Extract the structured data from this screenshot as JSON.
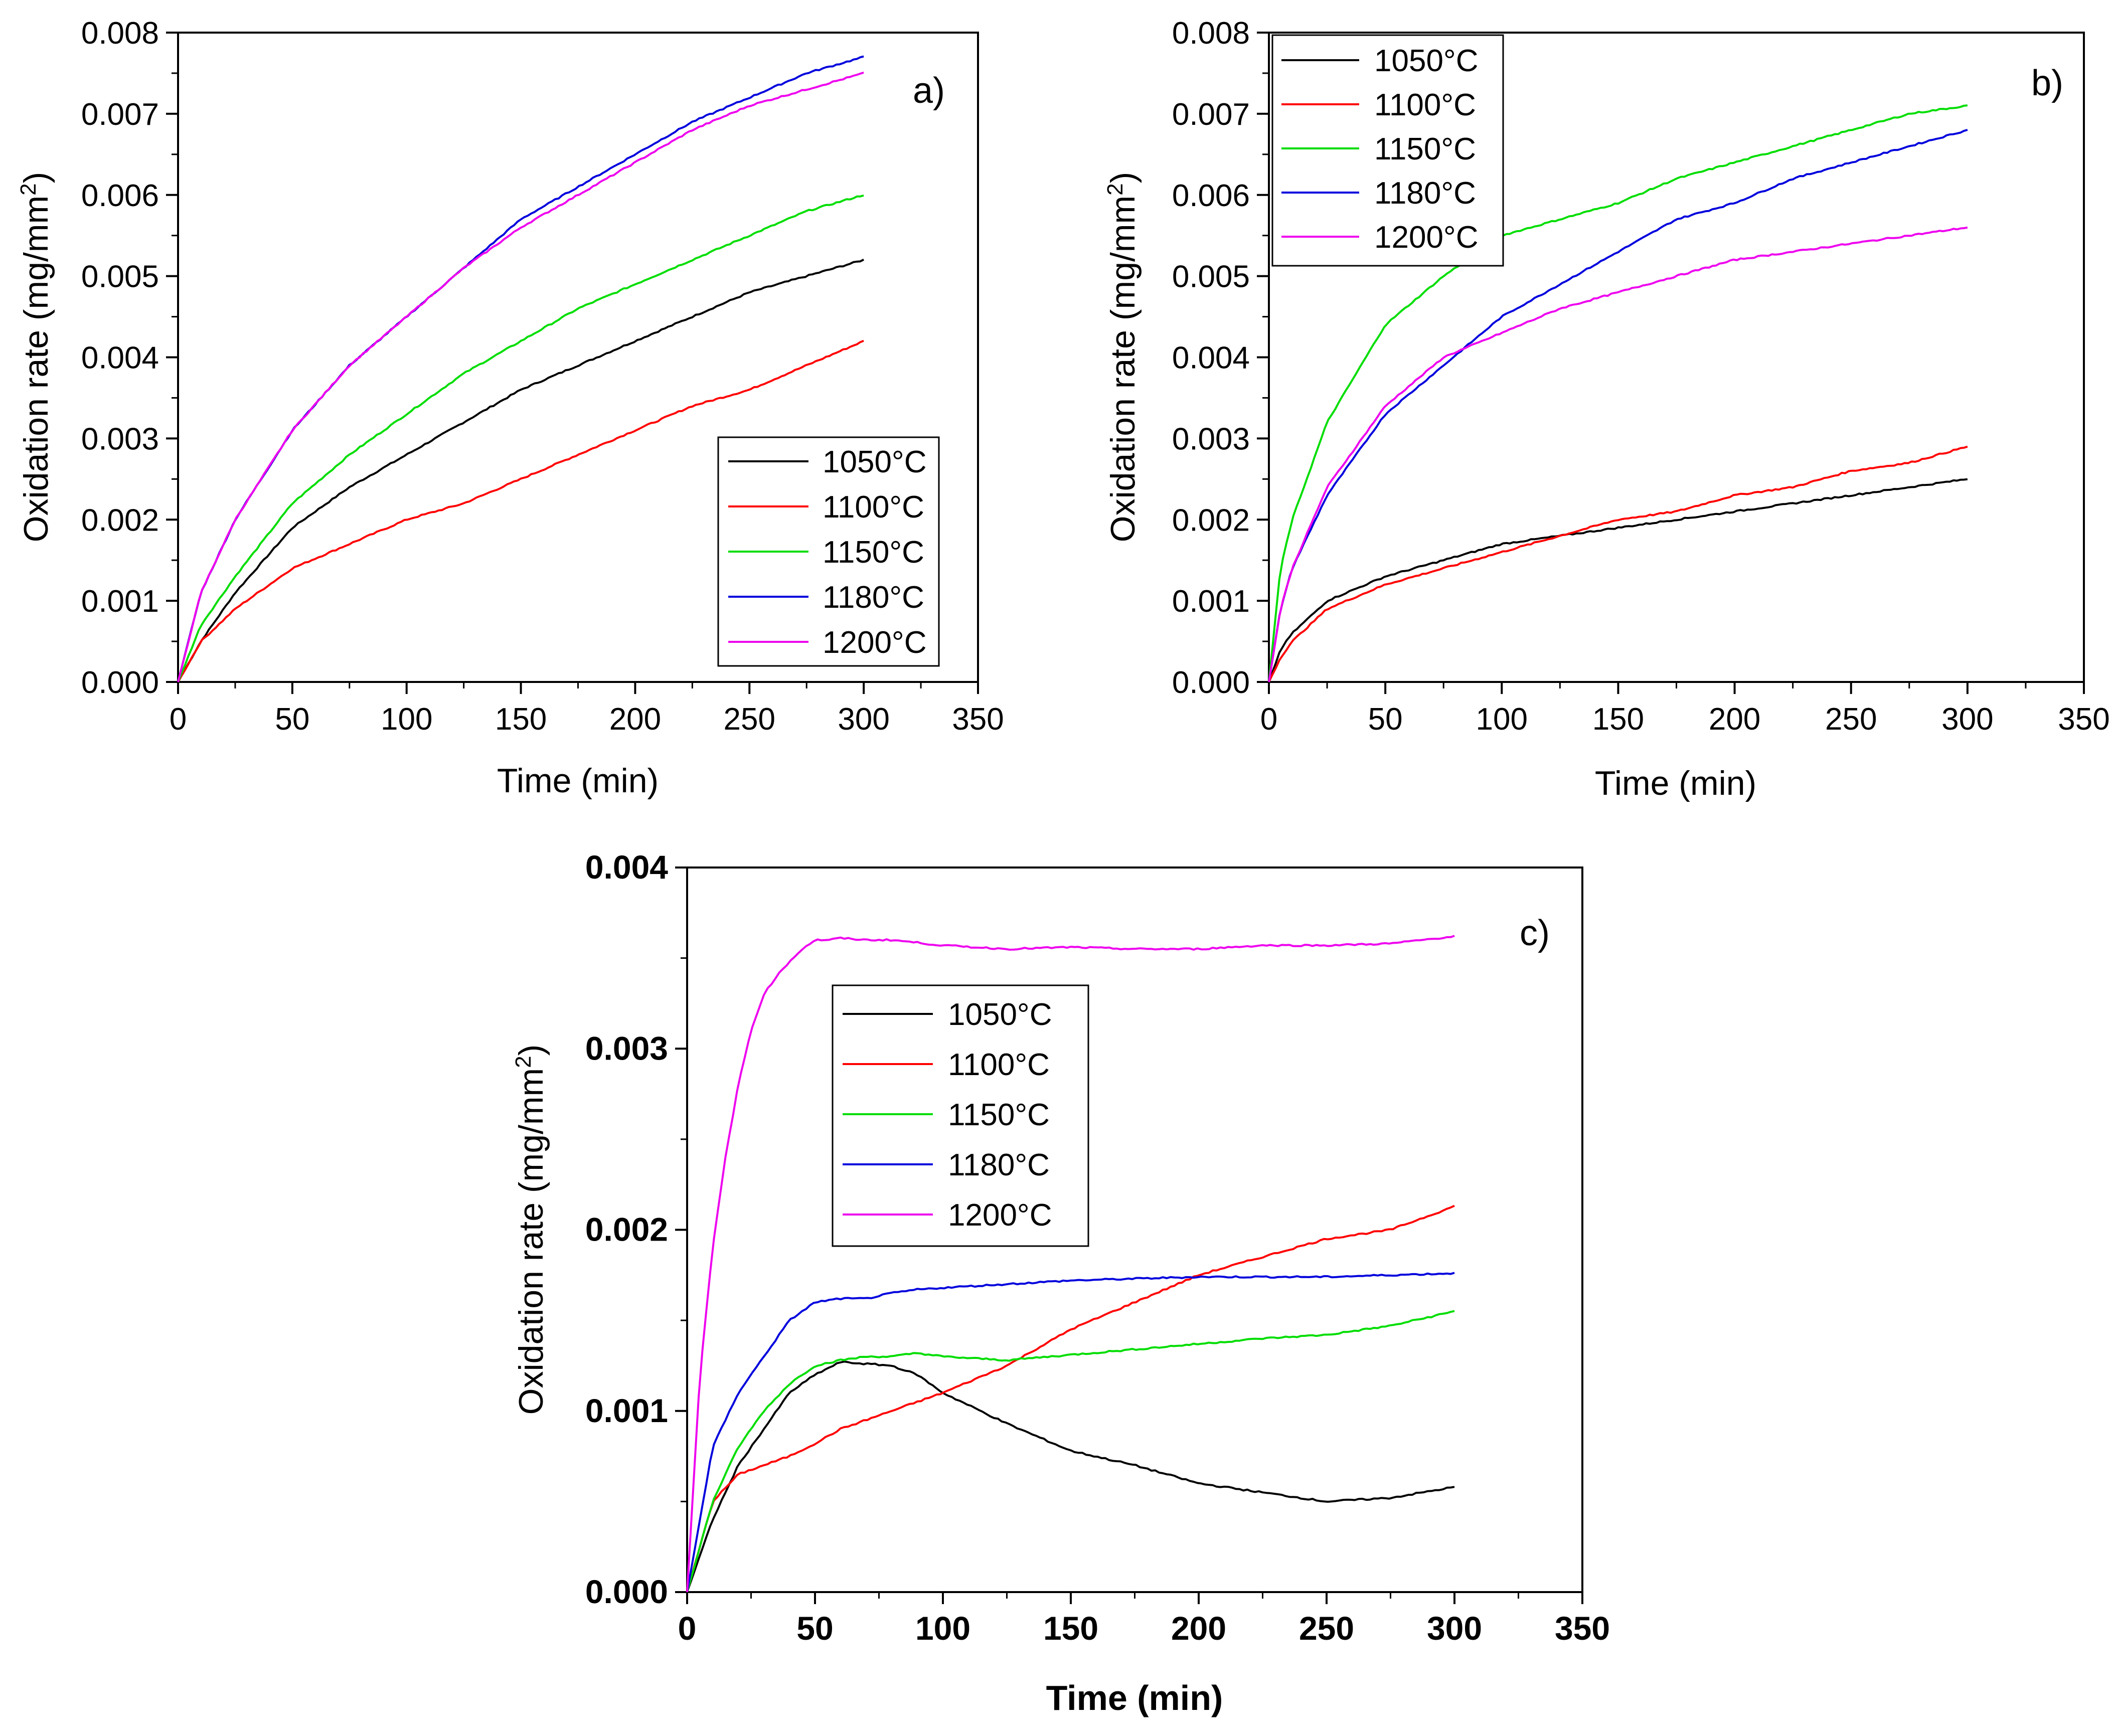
{
  "chart_data": [
    {
      "type": "line",
      "panel_label": "a)",
      "xlabel": "Time (min)",
      "ylabel": "Oxidation rate (mg/mm",
      "ylabel_sup": "2",
      "ylabel_end": ")",
      "xlim": [
        0,
        350
      ],
      "ylim": [
        0,
        0.008
      ],
      "xticks": [
        "0",
        "50",
        "100",
        "150",
        "200",
        "250",
        "300",
        "350"
      ],
      "yticks": [
        "0.000",
        "0.001",
        "0.002",
        "0.003",
        "0.004",
        "0.005",
        "0.006",
        "0.007",
        "0.008"
      ],
      "legend_position": "bottom-right",
      "series": [
        {
          "name": "1050°C",
          "color": "#000000",
          "x": [
            0,
            10,
            25,
            50,
            75,
            100,
            125,
            150,
            175,
            200,
            225,
            250,
            275,
            300
          ],
          "values": [
            0,
            0.0005,
            0.0011,
            0.0019,
            0.0024,
            0.0028,
            0.0032,
            0.0036,
            0.0039,
            0.0042,
            0.0045,
            0.0048,
            0.005,
            0.0052
          ]
        },
        {
          "name": "1100°C",
          "color": "#ff0000",
          "x": [
            0,
            10,
            25,
            50,
            75,
            100,
            125,
            150,
            175,
            200,
            225,
            250,
            275,
            300
          ],
          "values": [
            0,
            0.0005,
            0.0009,
            0.0014,
            0.0017,
            0.002,
            0.0022,
            0.0025,
            0.0028,
            0.0031,
            0.0034,
            0.0036,
            0.0039,
            0.0042
          ]
        },
        {
          "name": "1150°C",
          "color": "#00dd00",
          "x": [
            0,
            10,
            25,
            50,
            75,
            100,
            125,
            150,
            175,
            200,
            225,
            250,
            275,
            300
          ],
          "values": [
            0,
            0.0007,
            0.0013,
            0.0022,
            0.0028,
            0.0033,
            0.0038,
            0.0042,
            0.0046,
            0.0049,
            0.0052,
            0.0055,
            0.0058,
            0.006
          ]
        },
        {
          "name": "1180°C",
          "color": "#0000dd",
          "x": [
            0,
            10,
            25,
            50,
            75,
            100,
            125,
            150,
            175,
            200,
            225,
            250,
            275,
            300
          ],
          "values": [
            0,
            0.0011,
            0.002,
            0.0031,
            0.0039,
            0.0045,
            0.0051,
            0.0057,
            0.0061,
            0.0065,
            0.0069,
            0.0072,
            0.0075,
            0.0077
          ]
        },
        {
          "name": "1200°C",
          "color": "#ee00ee",
          "x": [
            0,
            10,
            25,
            50,
            75,
            100,
            125,
            150,
            175,
            200,
            225,
            250,
            275,
            300
          ],
          "values": [
            0,
            0.0011,
            0.002,
            0.0031,
            0.0039,
            0.0045,
            0.0051,
            0.0056,
            0.006,
            0.0064,
            0.0068,
            0.0071,
            0.0073,
            0.0075
          ]
        }
      ]
    },
    {
      "type": "line",
      "panel_label": "b)",
      "xlabel": "Time (min)",
      "ylabel": "Oxidation rate (mg/mm",
      "ylabel_sup": "2",
      "ylabel_end": ")",
      "xlim": [
        0,
        350
      ],
      "ylim": [
        0,
        0.008
      ],
      "xticks": [
        "0",
        "50",
        "100",
        "150",
        "200",
        "250",
        "300",
        "350"
      ],
      "yticks": [
        "0.000",
        "0.001",
        "0.002",
        "0.003",
        "0.004",
        "0.005",
        "0.006",
        "0.007",
        "0.008"
      ],
      "legend_position": "top-left",
      "series": [
        {
          "name": "1050°C",
          "color": "#000000",
          "x": [
            0,
            5,
            10,
            25,
            50,
            75,
            100,
            125,
            150,
            175,
            200,
            225,
            250,
            275,
            300
          ],
          "values": [
            0,
            0.0004,
            0.0006,
            0.001,
            0.0013,
            0.0015,
            0.0017,
            0.0018,
            0.0019,
            0.002,
            0.0021,
            0.0022,
            0.0023,
            0.0024,
            0.0025
          ]
        },
        {
          "name": "1100°C",
          "color": "#ff0000",
          "x": [
            0,
            5,
            10,
            25,
            50,
            75,
            100,
            125,
            150,
            175,
            200,
            225,
            250,
            275,
            300
          ],
          "values": [
            0,
            0.0003,
            0.0005,
            0.0009,
            0.0012,
            0.0014,
            0.0016,
            0.0018,
            0.002,
            0.0021,
            0.0023,
            0.0024,
            0.0026,
            0.0027,
            0.0029
          ]
        },
        {
          "name": "1150°C",
          "color": "#00dd00",
          "x": [
            0,
            5,
            10,
            25,
            50,
            75,
            100,
            125,
            150,
            175,
            200,
            225,
            250,
            275,
            300
          ],
          "values": [
            0,
            0.0014,
            0.002,
            0.0032,
            0.0044,
            0.005,
            0.0055,
            0.0057,
            0.0059,
            0.0062,
            0.0064,
            0.0066,
            0.0068,
            0.007,
            0.0071
          ]
        },
        {
          "name": "1180°C",
          "color": "#0000dd",
          "x": [
            0,
            5,
            10,
            25,
            50,
            75,
            100,
            125,
            150,
            175,
            200,
            225,
            250,
            275,
            300
          ],
          "values": [
            0,
            0.0009,
            0.0014,
            0.0023,
            0.0033,
            0.0039,
            0.0045,
            0.0049,
            0.0053,
            0.0057,
            0.0059,
            0.0062,
            0.0064,
            0.0066,
            0.0068
          ]
        },
        {
          "name": "1200°C",
          "color": "#ee00ee",
          "x": [
            0,
            5,
            10,
            25,
            50,
            75,
            100,
            125,
            150,
            175,
            200,
            225,
            250,
            275,
            300
          ],
          "values": [
            0,
            0.0009,
            0.0014,
            0.0024,
            0.0034,
            0.004,
            0.0043,
            0.0046,
            0.0048,
            0.005,
            0.0052,
            0.0053,
            0.0054,
            0.0055,
            0.0056
          ]
        }
      ]
    },
    {
      "type": "line",
      "panel_label": "c)",
      "xlabel": "Time (min)",
      "ylabel": "Oxidation rate (mg/mm",
      "ylabel_sup": "2",
      "ylabel_end": ")",
      "xlim": [
        0,
        350
      ],
      "ylim": [
        0,
        0.004
      ],
      "xticks": [
        "0",
        "50",
        "100",
        "150",
        "200",
        "250",
        "300",
        "350"
      ],
      "yticks": [
        "0.000",
        "0.001",
        "0.002",
        "0.003",
        "0.004"
      ],
      "legend_position": "upper-left-center",
      "series": [
        {
          "name": "1050°C",
          "color": "#000000",
          "x": [
            0,
            10,
            20,
            30,
            40,
            50,
            60,
            70,
            80,
            90,
            100,
            125,
            150,
            175,
            200,
            225,
            250,
            275,
            300
          ],
          "values": [
            0,
            0.0004,
            0.0007,
            0.0009,
            0.0011,
            0.0012,
            0.00127,
            0.00126,
            0.00125,
            0.0012,
            0.0011,
            0.00093,
            0.00078,
            0.0007,
            0.0006,
            0.00055,
            0.0005,
            0.00052,
            0.00058
          ]
        },
        {
          "name": "1100°C",
          "color": "#ff0000",
          "x": [
            0,
            10,
            20,
            30,
            40,
            50,
            60,
            70,
            80,
            90,
            100,
            125,
            150,
            175,
            200,
            225,
            250,
            275,
            300
          ],
          "values": [
            0,
            0.0005,
            0.00065,
            0.0007,
            0.00075,
            0.00082,
            0.0009,
            0.00095,
            0.001,
            0.00105,
            0.0011,
            0.00125,
            0.00145,
            0.0016,
            0.00175,
            0.00185,
            0.00195,
            0.002,
            0.00213
          ]
        },
        {
          "name": "1150°C",
          "color": "#00dd00",
          "x": [
            0,
            10,
            20,
            30,
            40,
            50,
            60,
            70,
            80,
            90,
            100,
            125,
            150,
            175,
            200,
            225,
            250,
            275,
            300
          ],
          "values": [
            0,
            0.0005,
            0.0008,
            0.001,
            0.00115,
            0.00125,
            0.00128,
            0.0013,
            0.0013,
            0.00132,
            0.0013,
            0.00128,
            0.00131,
            0.00134,
            0.00137,
            0.0014,
            0.00142,
            0.00147,
            0.00155
          ]
        },
        {
          "name": "1180°C",
          "color": "#0000dd",
          "x": [
            0,
            10,
            20,
            30,
            40,
            50,
            60,
            70,
            80,
            90,
            100,
            125,
            150,
            175,
            200,
            225,
            250,
            275,
            300
          ],
          "values": [
            0,
            0.0008,
            0.0011,
            0.0013,
            0.0015,
            0.0016,
            0.00162,
            0.00162,
            0.00165,
            0.00167,
            0.00168,
            0.0017,
            0.00172,
            0.00173,
            0.00174,
            0.00174,
            0.00174,
            0.00175,
            0.00176
          ]
        },
        {
          "name": "1200°C",
          "color": "#ee00ee",
          "x": [
            0,
            5,
            10,
            15,
            20,
            25,
            30,
            35,
            40,
            45,
            50,
            55,
            60,
            70,
            80,
            100,
            125,
            150,
            175,
            200,
            225,
            250,
            275,
            300
          ],
          "values": [
            0,
            0.0012,
            0.0019,
            0.0024,
            0.0028,
            0.0031,
            0.0033,
            0.0034,
            0.00348,
            0.00355,
            0.0036,
            0.0036,
            0.00361,
            0.0036,
            0.0036,
            0.00357,
            0.00355,
            0.00356,
            0.00355,
            0.00355,
            0.00357,
            0.00357,
            0.00358,
            0.00362
          ]
        }
      ]
    }
  ]
}
